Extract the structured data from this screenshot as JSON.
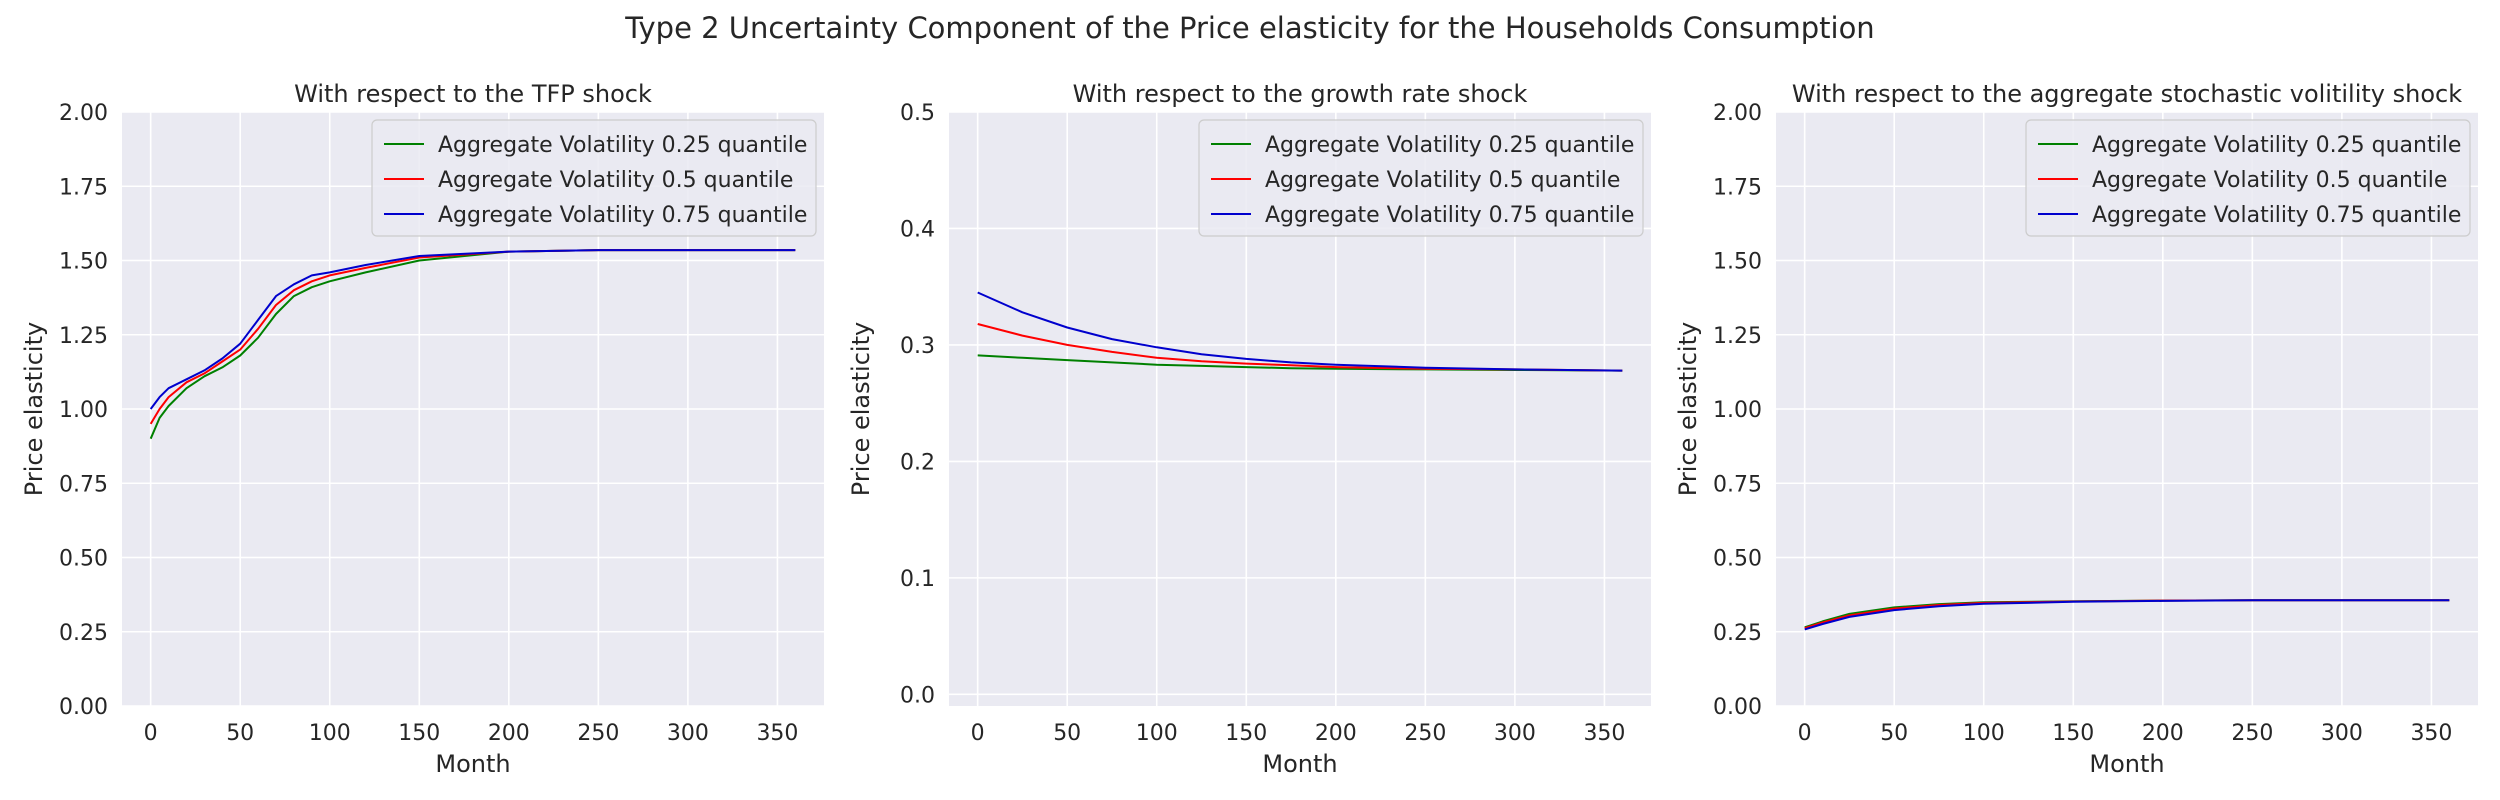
{
  "figure": {
    "suptitle": "Type 2 Uncertainty Component of the Price elasticity for the Households Consumption"
  },
  "colors": {
    "background": "#eaeaf2",
    "grid": "#ffffff",
    "text": "#262626"
  },
  "chart_data": [
    {
      "type": "line",
      "title": "With respect to the TFP shock",
      "xlabel": "Month",
      "ylabel": "Price elasticity",
      "xlim": [
        -16,
        376
      ],
      "ylim": [
        0,
        2
      ],
      "xticks": [
        0,
        50,
        100,
        150,
        200,
        250,
        300,
        350
      ],
      "yticks": [
        0,
        0.25,
        0.5,
        0.75,
        1.0,
        1.25,
        1.5,
        1.75,
        2.0
      ],
      "ytick_labels": [
        "0.00",
        "0.25",
        "0.50",
        "0.75",
        "1.00",
        "1.25",
        "1.50",
        "1.75",
        "2.00"
      ],
      "grid": true,
      "legend": "top-right",
      "x": [
        0,
        5,
        10,
        20,
        30,
        40,
        50,
        60,
        70,
        80,
        90,
        100,
        120,
        150,
        200,
        250,
        300,
        360
      ],
      "series": [
        {
          "name": "Aggregate Volatility 0.25 quantile",
          "color": "#008000",
          "values": [
            0.9,
            0.97,
            1.01,
            1.07,
            1.11,
            1.14,
            1.18,
            1.24,
            1.32,
            1.38,
            1.41,
            1.43,
            1.46,
            1.5,
            1.53,
            1.535,
            1.535,
            1.535
          ]
        },
        {
          "name": "Aggregate Volatility 0.5 quantile",
          "color": "#ff0000",
          "values": [
            0.95,
            1.0,
            1.04,
            1.09,
            1.12,
            1.16,
            1.2,
            1.27,
            1.35,
            1.4,
            1.43,
            1.45,
            1.475,
            1.51,
            1.53,
            1.535,
            1.535,
            1.535
          ]
        },
        {
          "name": "Aggregate Volatility 0.75 quantile",
          "color": "#0000cd",
          "values": [
            1.0,
            1.04,
            1.07,
            1.1,
            1.13,
            1.17,
            1.22,
            1.3,
            1.38,
            1.42,
            1.45,
            1.46,
            1.485,
            1.515,
            1.53,
            1.535,
            1.535,
            1.535
          ]
        }
      ]
    },
    {
      "type": "line",
      "title": "With respect to the growth rate shock",
      "xlabel": "Month",
      "ylabel": "Price elasticity",
      "xlim": [
        -16,
        376
      ],
      "ylim": [
        -0.01,
        0.5
      ],
      "xticks": [
        0,
        50,
        100,
        150,
        200,
        250,
        300,
        350
      ],
      "yticks": [
        0.0,
        0.1,
        0.2,
        0.3,
        0.4,
        0.5
      ],
      "ytick_labels": [
        "0.0",
        "0.1",
        "0.2",
        "0.3",
        "0.4",
        "0.5"
      ],
      "grid": true,
      "legend": "top-right",
      "x": [
        0,
        25,
        50,
        75,
        100,
        125,
        150,
        175,
        200,
        250,
        300,
        360
      ],
      "series": [
        {
          "name": "Aggregate Volatility 0.25 quantile",
          "color": "#008000",
          "values": [
            0.291,
            0.289,
            0.287,
            0.285,
            0.283,
            0.282,
            0.281,
            0.28,
            0.2795,
            0.279,
            0.2785,
            0.278
          ]
        },
        {
          "name": "Aggregate Volatility 0.5 quantile",
          "color": "#ff0000",
          "values": [
            0.318,
            0.308,
            0.3,
            0.294,
            0.289,
            0.286,
            0.284,
            0.2825,
            0.281,
            0.2795,
            0.279,
            0.278
          ]
        },
        {
          "name": "Aggregate Volatility 0.75 quantile",
          "color": "#0000cd",
          "values": [
            0.345,
            0.328,
            0.315,
            0.305,
            0.298,
            0.292,
            0.288,
            0.285,
            0.283,
            0.2805,
            0.279,
            0.278
          ]
        }
      ]
    },
    {
      "type": "line",
      "title": "With respect to the aggregate stochastic volitility shock",
      "xlabel": "Month",
      "ylabel": "Price elasticity",
      "xlim": [
        -16,
        376
      ],
      "ylim": [
        0,
        2
      ],
      "xticks": [
        0,
        50,
        100,
        150,
        200,
        250,
        300,
        350
      ],
      "yticks": [
        0,
        0.25,
        0.5,
        0.75,
        1.0,
        1.25,
        1.5,
        1.75,
        2.0
      ],
      "ytick_labels": [
        "0.00",
        "0.25",
        "0.50",
        "0.75",
        "1.00",
        "1.25",
        "1.50",
        "1.75",
        "2.00"
      ],
      "grid": true,
      "legend": "top-right",
      "x": [
        0,
        10,
        25,
        50,
        75,
        100,
        150,
        200,
        250,
        300,
        360
      ],
      "series": [
        {
          "name": "Aggregate Volatility 0.25 quantile",
          "color": "#008000",
          "values": [
            0.265,
            0.285,
            0.31,
            0.332,
            0.343,
            0.349,
            0.353,
            0.355,
            0.356,
            0.356,
            0.356
          ]
        },
        {
          "name": "Aggregate Volatility 0.5 quantile",
          "color": "#ff0000",
          "values": [
            0.262,
            0.281,
            0.305,
            0.328,
            0.34,
            0.347,
            0.352,
            0.355,
            0.356,
            0.356,
            0.356
          ]
        },
        {
          "name": "Aggregate Volatility 0.75 quantile",
          "color": "#0000cd",
          "values": [
            0.258,
            0.276,
            0.3,
            0.323,
            0.336,
            0.344,
            0.351,
            0.354,
            0.356,
            0.356,
            0.356
          ]
        }
      ]
    }
  ]
}
